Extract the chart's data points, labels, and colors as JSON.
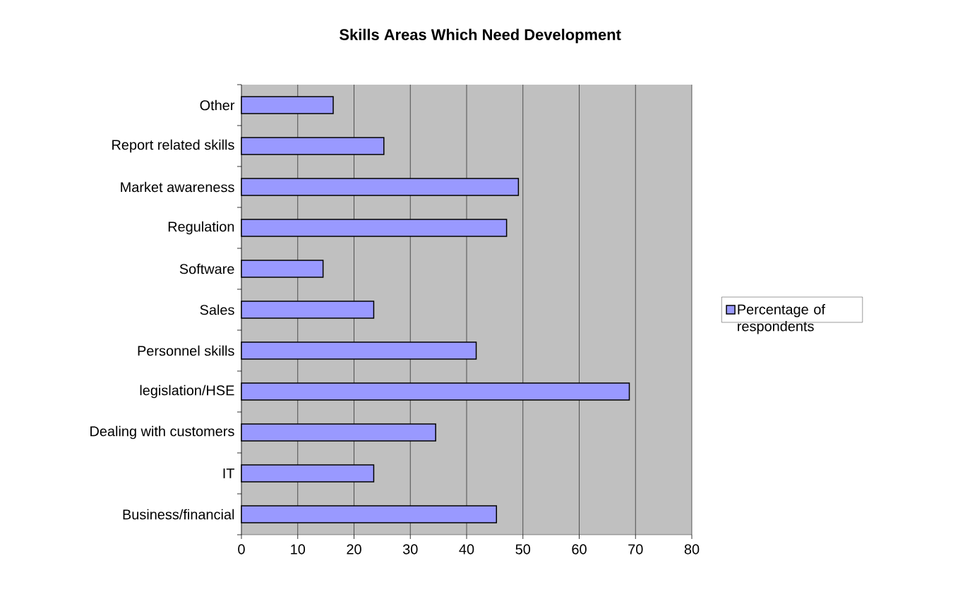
{
  "chart_data": {
    "type": "bar",
    "orientation": "horizontal",
    "title": "Skills Areas Which Need Development",
    "categories": [
      "Other",
      "Report related skills",
      "Market awareness",
      "Regulation",
      "Software",
      "Sales",
      "Personnel skills",
      "legislation/HSE",
      "Dealing with customers",
      "IT",
      "Business/financial"
    ],
    "series": [
      {
        "name": "Percentage of respondents",
        "color": "#9999ff",
        "values": [
          16.3,
          25.3,
          49.2,
          47.1,
          14.5,
          23.5,
          41.7,
          68.9,
          34.5,
          23.5,
          45.3
        ]
      }
    ],
    "xlim": [
      0,
      80
    ],
    "xticks": [
      0,
      10,
      20,
      30,
      40,
      50,
      60,
      70,
      80
    ],
    "grid": "x",
    "legend": "right"
  }
}
